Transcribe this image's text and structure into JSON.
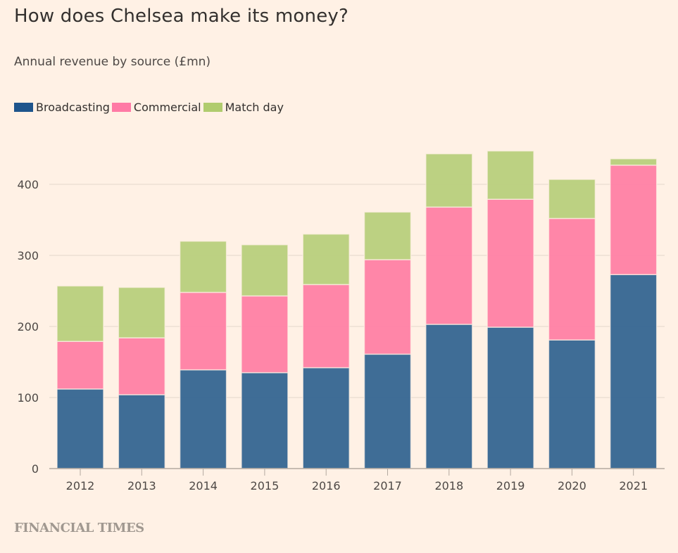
{
  "header": {
    "title": "How does Chelsea make its money?",
    "subtitle": "Annual revenue by source (£mn)"
  },
  "legend": [
    {
      "label": "Broadcasting",
      "color": "#356591"
    },
    {
      "label": "Commercial",
      "color": "#ff80a4"
    },
    {
      "label": "Match day",
      "color": "#b8cf7c"
    }
  ],
  "footer": {
    "source": "FINANCIAL TIMES"
  },
  "chart_data": {
    "type": "bar",
    "stacked": true,
    "title": "How does Chelsea make its money?",
    "subtitle": "Annual revenue by source (£mn)",
    "xlabel": "",
    "ylabel": "",
    "categories": [
      "2012",
      "2013",
      "2014",
      "2015",
      "2016",
      "2017",
      "2018",
      "2019",
      "2020",
      "2021"
    ],
    "series": [
      {
        "name": "Broadcasting",
        "color": "#356591",
        "values": [
          112,
          104,
          139,
          135,
          142,
          161,
          203,
          199,
          181,
          273
        ]
      },
      {
        "name": "Commercial",
        "color": "#ff80a4",
        "values": [
          67,
          80,
          109,
          108,
          117,
          133,
          165,
          180,
          171,
          154
        ]
      },
      {
        "name": "Match day",
        "color": "#b8cf7c",
        "values": [
          78,
          71,
          72,
          72,
          71,
          67,
          75,
          68,
          55,
          9
        ]
      }
    ],
    "ylim": [
      0,
      450
    ],
    "yticks": [
      0,
      100,
      200,
      300,
      400
    ],
    "grid": true,
    "legend_position": "top-left"
  }
}
